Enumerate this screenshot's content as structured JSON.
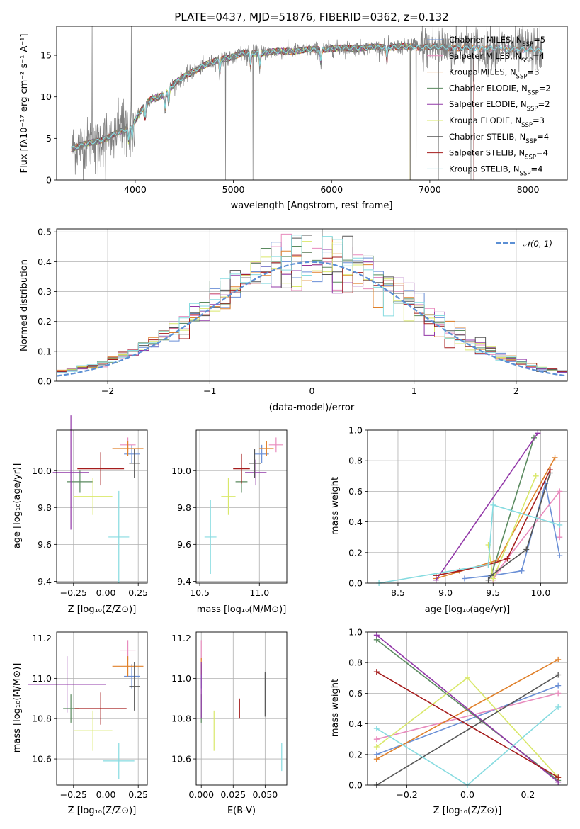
{
  "colors": {
    "Chabrier MILES": "#6a8fd6",
    "Salpeter MILES": "#e88bbd",
    "Kroupa MILES": "#e0802a",
    "Chabrier ELODIE": "#5a8a5f",
    "Salpeter ELODIE": "#9238a8",
    "Kroupa ELODIE": "#d9e86a",
    "Chabrier STELIB": "#555555",
    "Salpeter STELIB": "#a51c1c",
    "Kroupa STELIB": "#86dbe0",
    "normal": "#5b8fd4"
  },
  "chart_data": [
    {
      "id": "spectrum",
      "type": "line",
      "title": "PLATE=0437, MJD=51876, FIBERID=0362, z=0.132",
      "xlabel": "wavelength [Angstrom, rest frame]",
      "ylabel": "Flux [fλ10⁻¹⁷ erg cm⁻² s⁻¹ A⁻¹]",
      "xlim": [
        3200,
        8400
      ],
      "ylim": [
        0,
        18.5
      ],
      "xticks": [
        "4000",
        "5000",
        "6000",
        "7000",
        "8000"
      ],
      "yticks": [
        "0",
        "5",
        "10",
        "15"
      ],
      "grid": false,
      "legend_position": "top-right",
      "legend": [
        {
          "name": "Chabrier MILES",
          "nssp": "=5"
        },
        {
          "name": "Salpeter MILES",
          "nssp": "=4"
        },
        {
          "name": "Kroupa MILES",
          "nssp": "=3"
        },
        {
          "name": "Chabrier ELODIE",
          "nssp": "=2"
        },
        {
          "name": "Salpeter ELODIE",
          "nssp": "=2"
        },
        {
          "name": "Kroupa ELODIE",
          "nssp": "=3"
        },
        {
          "name": "Chabrier STELIB",
          "nssp": "=4"
        },
        {
          "name": "Salpeter STELIB",
          "nssp": "=4"
        },
        {
          "name": "Kroupa STELIB",
          "nssp": "=4"
        }
      ],
      "continuum": [
        [
          3350,
          3.8
        ],
        [
          3500,
          4.3
        ],
        [
          3700,
          5.0
        ],
        [
          3850,
          5.8
        ],
        [
          3950,
          6.3
        ],
        [
          4050,
          8.2
        ],
        [
          4150,
          9.6
        ],
        [
          4300,
          10.3
        ],
        [
          4400,
          11.6
        ],
        [
          4550,
          12.8
        ],
        [
          4700,
          13.8
        ],
        [
          4900,
          14.6
        ],
        [
          5100,
          15.2
        ],
        [
          5400,
          15.4
        ],
        [
          5700,
          15.6
        ],
        [
          6000,
          15.8
        ],
        [
          6300,
          15.9
        ],
        [
          6600,
          16.0
        ],
        [
          7000,
          16.0
        ],
        [
          7400,
          15.9
        ],
        [
          7800,
          15.8
        ],
        [
          8150,
          15.6
        ]
      ]
    },
    {
      "id": "residuals",
      "type": "bar",
      "xlabel": "(data-model)/error",
      "ylabel": "Normed distribution",
      "xlim": [
        -2.5,
        2.5
      ],
      "ylim": [
        0,
        0.51
      ],
      "xticks": [
        "−2",
        "−1",
        "0",
        "1",
        "2"
      ],
      "yticks": [
        "0.0",
        "0.1",
        "0.2",
        "0.3",
        "0.4",
        "0.5"
      ],
      "grid": true,
      "legend_position": "top-right",
      "legend_label": "𝒩(0, 1)",
      "bin_width": 0.1
    },
    {
      "id": "age_vs_Z",
      "type": "scatter",
      "xlabel": "Z [log₁₀(Z/Z⊙)]",
      "ylabel": "age  [log₁₀(age/yr)]",
      "xlim": [
        -0.38,
        0.32
      ],
      "ylim": [
        9.39,
        10.22
      ],
      "xticks": [
        "−0.25",
        "0.00",
        "0.25"
      ],
      "xtickvals": [
        -0.25,
        0,
        0.25
      ],
      "yticks": [
        "9.4",
        "9.6",
        "9.8",
        "10.0"
      ],
      "ytickvals": [
        9.4,
        9.6,
        9.8,
        10.0
      ],
      "points": [
        {
          "series": "Chabrier MILES",
          "x": 0.2,
          "y": 10.09,
          "xerr": 0.06,
          "yerr": 0.05
        },
        {
          "series": "Salpeter MILES",
          "x": 0.17,
          "y": 10.14,
          "xerr": 0.06,
          "yerr": 0.04
        },
        {
          "series": "Kroupa MILES",
          "x": 0.17,
          "y": 10.12,
          "xerr": 0.12,
          "yerr": 0.04
        },
        {
          "series": "Chabrier ELODIE",
          "x": -0.2,
          "y": 9.94,
          "xerr": 0.1,
          "yerr": 0.06
        },
        {
          "series": "Salpeter ELODIE",
          "x": -0.27,
          "y": 9.99,
          "xerr": 0.14,
          "yerr": 0.31
        },
        {
          "series": "Kroupa ELODIE",
          "x": -0.1,
          "y": 9.86,
          "xerr": 0.15,
          "yerr": 0.1
        },
        {
          "series": "Chabrier STELIB",
          "x": 0.22,
          "y": 10.04,
          "xerr": 0.04,
          "yerr": 0.08
        },
        {
          "series": "Salpeter STELIB",
          "x": -0.04,
          "y": 10.01,
          "xerr": 0.18,
          "yerr": 0.09
        },
        {
          "series": "Kroupa STELIB",
          "x": 0.1,
          "y": 9.64,
          "xerr": 0.08,
          "yerr": 0.25
        }
      ]
    },
    {
      "id": "age_vs_mass",
      "type": "scatter",
      "xlabel": "mass [log₁₀(M/M⊙)]",
      "xlim": [
        10.47,
        11.23
      ],
      "ylim": [
        9.39,
        10.22
      ],
      "xticks": [
        "10.5",
        "11.0"
      ],
      "xtickvals": [
        10.5,
        11.0
      ],
      "yticks": [
        "9.4",
        "9.6",
        "9.8",
        "10.0"
      ],
      "ytickvals": [
        9.4,
        9.6,
        9.8,
        10.0
      ],
      "points": [
        {
          "series": "Chabrier MILES",
          "x": 11.02,
          "y": 10.09,
          "xerr": 0.06,
          "yerr": 0.05
        },
        {
          "series": "Salpeter MILES",
          "x": 11.14,
          "y": 10.14,
          "xerr": 0.06,
          "yerr": 0.04
        },
        {
          "series": "Kroupa MILES",
          "x": 11.06,
          "y": 10.12,
          "xerr": 0.06,
          "yerr": 0.04
        },
        {
          "series": "Chabrier ELODIE",
          "x": 10.85,
          "y": 9.94,
          "xerr": 0.05,
          "yerr": 0.06
        },
        {
          "series": "Salpeter ELODIE",
          "x": 10.97,
          "y": 9.99,
          "xerr": 0.09,
          "yerr": 0.07
        },
        {
          "series": "Kroupa ELODIE",
          "x": 10.74,
          "y": 9.86,
          "xerr": 0.06,
          "yerr": 0.1
        },
        {
          "series": "Chabrier STELIB",
          "x": 10.96,
          "y": 10.04,
          "xerr": 0.05,
          "yerr": 0.08
        },
        {
          "series": "Salpeter STELIB",
          "x": 10.85,
          "y": 10.01,
          "xerr": 0.07,
          "yerr": 0.08
        },
        {
          "series": "Kroupa STELIB",
          "x": 10.59,
          "y": 9.64,
          "xerr": 0.05,
          "yerr": 0.2
        }
      ]
    },
    {
      "id": "mass_weight_vs_age",
      "type": "line",
      "xlabel": "age  [log₁₀(age/yr)]",
      "ylabel": "mass weight",
      "xlim": [
        8.18,
        10.28
      ],
      "ylim": [
        0,
        1
      ],
      "xticks": [
        "8.5",
        "9.0",
        "9.5",
        "10.0"
      ],
      "xtickvals": [
        8.5,
        9.0,
        9.5,
        10.0
      ],
      "yticks": [
        "0.0",
        "0.2",
        "0.4",
        "0.6",
        "0.8",
        "1.0"
      ],
      "ytickvals": [
        0,
        0.2,
        0.4,
        0.6,
        0.8,
        1.0
      ],
      "series": [
        {
          "name": "Chabrier MILES",
          "points": [
            [
              9.2,
              0.03
            ],
            [
              9.5,
              0.05
            ],
            [
              9.8,
              0.08
            ],
            [
              10.05,
              0.65
            ],
            [
              10.2,
              0.18
            ]
          ]
        },
        {
          "name": "Salpeter MILES",
          "points": [
            [
              9.5,
              0.02
            ],
            [
              9.55,
              0.08
            ],
            [
              10.2,
              0.6
            ],
            [
              10.2,
              0.3
            ]
          ]
        },
        {
          "name": "Kroupa MILES",
          "points": [
            [
              8.9,
              0.03
            ],
            [
              9.55,
              0.15
            ],
            [
              10.15,
              0.82
            ]
          ]
        },
        {
          "name": "Chabrier ELODIE",
          "points": [
            [
              9.48,
              0.05
            ],
            [
              9.93,
              0.95
            ]
          ]
        },
        {
          "name": "Salpeter ELODIE",
          "points": [
            [
              8.9,
              0.02
            ],
            [
              9.97,
              0.98
            ]
          ]
        },
        {
          "name": "Kroupa ELODIE",
          "points": [
            [
              9.45,
              0.25
            ],
            [
              9.5,
              0.03
            ],
            [
              9.95,
              0.7
            ]
          ]
        },
        {
          "name": "Chabrier STELIB",
          "points": [
            [
              9.45,
              0.02
            ],
            [
              9.48,
              0.05
            ],
            [
              9.85,
              0.22
            ],
            [
              10.1,
              0.72
            ]
          ]
        },
        {
          "name": "Salpeter STELIB",
          "points": [
            [
              8.9,
              0.05
            ],
            [
              9.15,
              0.08
            ],
            [
              9.45,
              0.12
            ],
            [
              9.65,
              0.16
            ],
            [
              10.1,
              0.74
            ]
          ]
        },
        {
          "name": "Kroupa STELIB",
          "points": [
            [
              8.3,
              0.0
            ],
            [
              9.45,
              0.12
            ],
            [
              9.5,
              0.51
            ],
            [
              10.2,
              0.38
            ]
          ]
        }
      ]
    },
    {
      "id": "mass_vs_Z",
      "type": "scatter",
      "xlabel": "Z [log₁₀(Z/Z⊙)]",
      "ylabel": "mass [log₁₀(M/M⊙)]",
      "xlim": [
        -0.38,
        0.32
      ],
      "ylim": [
        10.47,
        11.23
      ],
      "xticks": [
        "−0.25",
        "0.00",
        "0.25"
      ],
      "xtickvals": [
        -0.25,
        0,
        0.25
      ],
      "yticks": [
        "10.6",
        "10.8",
        "11.0",
        "11.2"
      ],
      "ytickvals": [
        10.6,
        10.8,
        11.0,
        11.2
      ],
      "points": [
        {
          "series": "Chabrier MILES",
          "x": 0.2,
          "y": 11.01,
          "xerr": 0.06,
          "yerr": 0.06
        },
        {
          "series": "Salpeter MILES",
          "x": 0.17,
          "y": 11.14,
          "xerr": 0.06,
          "yerr": 0.05
        },
        {
          "series": "Kroupa MILES",
          "x": 0.17,
          "y": 11.06,
          "xerr": 0.12,
          "yerr": 0.05
        },
        {
          "series": "Chabrier ELODIE",
          "x": -0.27,
          "y": 10.85,
          "xerr": 0.06,
          "yerr": 0.07
        },
        {
          "series": "Salpeter ELODIE",
          "x": -0.3,
          "y": 10.97,
          "xerr": 0.3,
          "yerr": 0.14
        },
        {
          "series": "Kroupa ELODIE",
          "x": -0.1,
          "y": 10.74,
          "xerr": 0.15,
          "yerr": 0.1
        },
        {
          "series": "Chabrier STELIB",
          "x": 0.22,
          "y": 10.96,
          "xerr": 0.04,
          "yerr": 0.12
        },
        {
          "series": "Salpeter STELIB",
          "x": -0.04,
          "y": 10.85,
          "xerr": 0.2,
          "yerr": 0.08
        },
        {
          "series": "Kroupa STELIB",
          "x": 0.1,
          "y": 10.59,
          "xerr": 0.12,
          "yerr": 0.09
        }
      ]
    },
    {
      "id": "mass_vs_ebv",
      "type": "scatter",
      "xlabel": "E(B-V)",
      "xlim": [
        -0.004,
        0.067
      ],
      "ylim": [
        10.47,
        11.23
      ],
      "xticks": [
        "0.000",
        "0.025",
        "0.050"
      ],
      "xtickvals": [
        0,
        0.025,
        0.05
      ],
      "yticks": [
        "10.6",
        "10.8",
        "11.0",
        "11.2"
      ],
      "ytickvals": [
        10.6,
        10.8,
        11.0,
        11.2
      ],
      "points": [
        {
          "series": "Chabrier MILES",
          "x": 0.0,
          "y": 11.01,
          "xerr": 0,
          "yerr": 0.06
        },
        {
          "series": "Salpeter MILES",
          "x": 0.0,
          "y": 11.14,
          "xerr": 0,
          "yerr": 0.05
        },
        {
          "series": "Kroupa MILES",
          "x": 0.0,
          "y": 11.06,
          "xerr": 0,
          "yerr": 0.04
        },
        {
          "series": "Chabrier ELODIE",
          "x": 0.0,
          "y": 10.85,
          "xerr": 0,
          "yerr": 0.07
        },
        {
          "series": "Salpeter ELODIE",
          "x": 0.0,
          "y": 10.94,
          "xerr": 0,
          "yerr": 0.14
        },
        {
          "series": "Kroupa ELODIE",
          "x": 0.01,
          "y": 10.74,
          "xerr": 0,
          "yerr": 0.1
        },
        {
          "series": "Chabrier STELIB",
          "x": 0.05,
          "y": 10.92,
          "xerr": 0,
          "yerr": 0.11
        },
        {
          "series": "Salpeter STELIB",
          "x": 0.03,
          "y": 10.85,
          "xerr": 0,
          "yerr": 0.05
        },
        {
          "series": "Kroupa STELIB",
          "x": 0.063,
          "y": 10.61,
          "xerr": 0,
          "yerr": 0.07
        }
      ]
    },
    {
      "id": "mass_weight_vs_Z",
      "type": "line",
      "xlabel": "Z [log₁₀(Z/Z⊙)]",
      "ylabel": "mass weight",
      "xlim": [
        -0.33,
        0.33
      ],
      "ylim": [
        0,
        1
      ],
      "xticks": [
        "−0.2",
        "0.0",
        "0.2"
      ],
      "xtickvals": [
        -0.2,
        0,
        0.2
      ],
      "yticks": [
        "0.0",
        "0.2",
        "0.4",
        "0.6",
        "0.8",
        "1.0"
      ],
      "ytickvals": [
        0,
        0.2,
        0.4,
        0.6,
        0.8,
        1.0
      ],
      "series": [
        {
          "name": "Chabrier MILES",
          "points": [
            [
              -0.3,
              0.2
            ],
            [
              0.3,
              0.65
            ]
          ]
        },
        {
          "name": "Salpeter MILES",
          "points": [
            [
              -0.3,
              0.3
            ],
            [
              0.3,
              0.6
            ]
          ]
        },
        {
          "name": "Kroupa MILES",
          "points": [
            [
              -0.3,
              0.17
            ],
            [
              0.3,
              0.82
            ]
          ]
        },
        {
          "name": "Chabrier ELODIE",
          "points": [
            [
              -0.3,
              0.95
            ],
            [
              0.3,
              0.03
            ]
          ]
        },
        {
          "name": "Salpeter ELODIE",
          "points": [
            [
              -0.3,
              0.98
            ],
            [
              0.3,
              0.02
            ]
          ]
        },
        {
          "name": "Kroupa ELODIE",
          "points": [
            [
              -0.3,
              0.25
            ],
            [
              0.0,
              0.7
            ],
            [
              0.3,
              0.05
            ]
          ]
        },
        {
          "name": "Chabrier STELIB",
          "points": [
            [
              -0.3,
              0.0
            ],
            [
              0.3,
              0.72
            ]
          ]
        },
        {
          "name": "Salpeter STELIB",
          "points": [
            [
              -0.3,
              0.74
            ],
            [
              0.3,
              0.05
            ]
          ]
        },
        {
          "name": "Kroupa STELIB",
          "points": [
            [
              -0.3,
              0.37
            ],
            [
              0.0,
              0.0
            ],
            [
              0.3,
              0.51
            ]
          ]
        }
      ]
    }
  ]
}
